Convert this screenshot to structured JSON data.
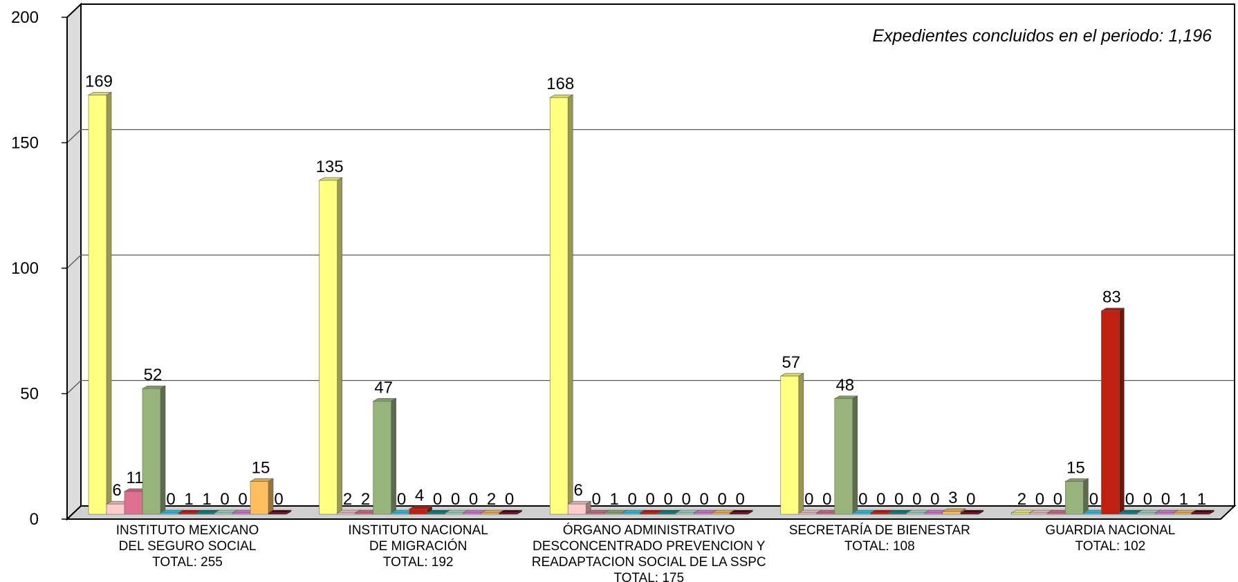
{
  "chart_data": {
    "type": "bar",
    "annotation": "Expedientes concluidos en el periodo:  1,196",
    "ylim": [
      0,
      200
    ],
    "yticks": [
      "0",
      "50",
      "100",
      "150",
      "200"
    ],
    "grid": true,
    "categories": [
      {
        "lines": [
          "INSTITUTO MEXICANO",
          "DEL SEGURO SOCIAL",
          "TOTAL:  255"
        ],
        "values": [
          169,
          6,
          11,
          52,
          0,
          1,
          1,
          0,
          0,
          15,
          0
        ]
      },
      {
        "lines": [
          "INSTITUTO NACIONAL",
          "DE MIGRACIÓN",
          "TOTAL:  192"
        ],
        "values": [
          135,
          2,
          2,
          47,
          0,
          4,
          0,
          0,
          0,
          2,
          0
        ]
      },
      {
        "lines": [
          "ÓRGANO ADMINISTRATIVO",
          "DESCONCENTRADO PREVENCION Y",
          "READAPTACION SOCIAL DE LA SSPC",
          "TOTAL:  175"
        ],
        "values": [
          168,
          6,
          0,
          1,
          0,
          0,
          0,
          0,
          0,
          0,
          0
        ]
      },
      {
        "lines": [
          "SECRETARÍA DE BIENESTAR",
          "TOTAL:  108"
        ],
        "values": [
          57,
          0,
          0,
          48,
          0,
          0,
          0,
          0,
          0,
          3,
          0
        ]
      },
      {
        "lines": [
          "GUARDIA NACIONAL",
          "TOTAL:  102"
        ],
        "values": [
          2,
          0,
          0,
          15,
          0,
          83,
          0,
          0,
          0,
          1,
          1
        ]
      }
    ],
    "series_colors": [
      "#ffff80",
      "#ffcccc",
      "#e07090",
      "#98b47c",
      "#33ccee",
      "#c02010",
      "#108080",
      "#a8e0d0",
      "#e080e0",
      "#ffbf60",
      "#600010"
    ]
  }
}
